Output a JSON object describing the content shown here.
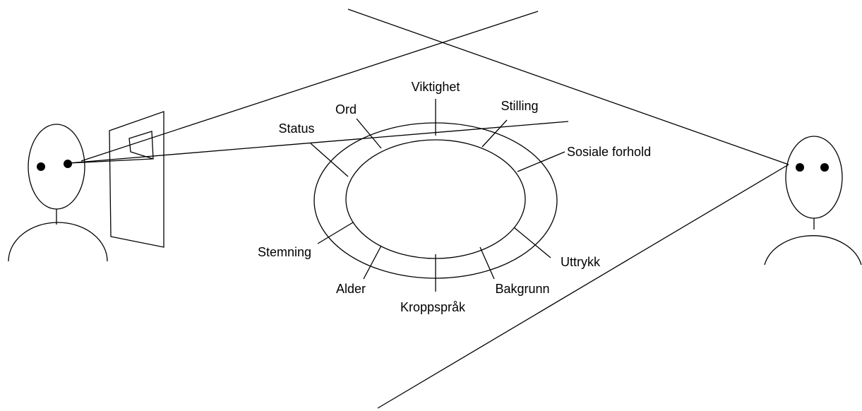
{
  "labels": [
    "Viktighet",
    "Stilling",
    "Sosiale forhold",
    "Uttrykk",
    "Bakgrunn",
    "Kroppspråk",
    "Alder",
    "Stemning",
    "Status",
    "Ord"
  ]
}
